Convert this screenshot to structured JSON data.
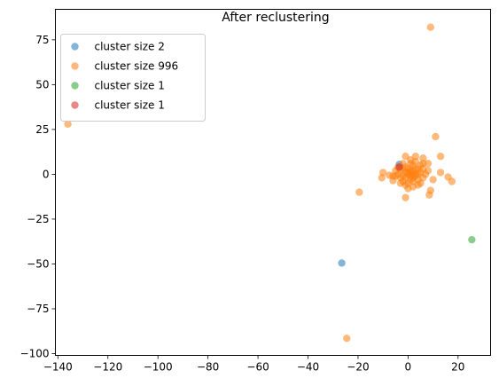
{
  "chart_data": {
    "type": "scatter",
    "title": "After reclustering",
    "xlabel": "",
    "ylabel": "",
    "xlim": [
      -141,
      33
    ],
    "ylim": [
      -101,
      92
    ],
    "xticks": [
      -140,
      -120,
      -100,
      -80,
      -60,
      -40,
      -20,
      0,
      20
    ],
    "yticks": [
      -100,
      -75,
      -50,
      -25,
      0,
      25,
      50,
      75
    ],
    "grid": false,
    "legend_position": "top-left",
    "series": [
      {
        "name": "cluster size 2",
        "color": "#1f77b4",
        "points": [
          [
            -26.5,
            -49.5
          ],
          [
            -3.5,
            5.5
          ]
        ]
      },
      {
        "name": "cluster size 996",
        "color": "#ff7f0e",
        "points": [
          [
            9,
            82
          ],
          [
            -136,
            28
          ],
          [
            11,
            21
          ],
          [
            -24.5,
            -91.5
          ],
          [
            -19.5,
            -10
          ],
          [
            -10,
            1
          ],
          [
            -10.5,
            -2
          ],
          [
            -7.5,
            -0.5
          ],
          [
            -6,
            -3.5
          ],
          [
            -5,
            -1
          ],
          [
            -2,
            3
          ],
          [
            -1,
            10
          ],
          [
            1,
            8
          ],
          [
            3,
            10
          ],
          [
            6,
            9
          ],
          [
            13,
            10
          ],
          [
            8,
            6
          ],
          [
            10,
            -3
          ],
          [
            9,
            -9
          ],
          [
            8.5,
            -11.5
          ],
          [
            -1,
            -13
          ],
          [
            13,
            1
          ],
          [
            16,
            -1.5
          ],
          [
            17.5,
            -4
          ],
          [
            5,
            -5
          ],
          [
            2,
            -2
          ],
          [
            0,
            0
          ],
          [
            1,
            2
          ],
          [
            -2,
            -1
          ],
          [
            3,
            0
          ],
          [
            4,
            3
          ],
          [
            -3,
            2
          ],
          [
            0,
            -5
          ],
          [
            2,
            5
          ],
          [
            -1,
            4
          ],
          [
            5,
            1
          ],
          [
            6,
            -2
          ],
          [
            -4,
            0
          ],
          [
            1,
            -3
          ],
          [
            3,
            -1
          ],
          [
            0,
            3
          ],
          [
            -2,
            -4
          ],
          [
            4,
            -3
          ],
          [
            2,
            2
          ],
          [
            -1,
            1
          ],
          [
            -3,
            -2
          ],
          [
            1,
            6
          ],
          [
            6,
            3
          ],
          [
            -5,
            2
          ],
          [
            0,
            -8
          ],
          [
            2,
            -7
          ],
          [
            4,
            -6
          ],
          [
            -2,
            6
          ],
          [
            5,
            5
          ],
          [
            7,
            0
          ],
          [
            3,
            7
          ],
          [
            -6,
            -1
          ],
          [
            -1,
            -2
          ],
          [
            1,
            1
          ],
          [
            2,
            -4
          ],
          [
            -4,
            4
          ],
          [
            3,
            3
          ],
          [
            0,
            1
          ],
          [
            -1,
            -6
          ],
          [
            4,
            0
          ],
          [
            6,
            6
          ],
          [
            8,
            2
          ],
          [
            -3,
            -5
          ],
          [
            1,
            -1
          ],
          [
            2,
            0
          ]
        ]
      },
      {
        "name": "cluster size 1",
        "color": "#2ca02c",
        "points": [
          [
            25.5,
            -36.5
          ]
        ]
      },
      {
        "name": "cluster size 1",
        "color": "#d62728",
        "points": [
          [
            -3.5,
            4
          ]
        ]
      }
    ]
  }
}
